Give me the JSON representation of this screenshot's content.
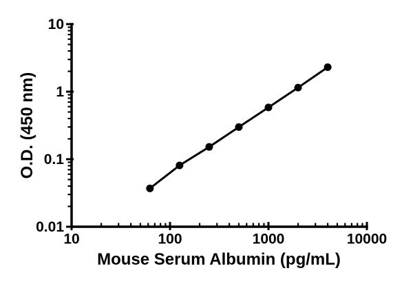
{
  "figure": {
    "background_color": "#ffffff",
    "axis_color": "#000000",
    "description": "ELISA standard curve, log-log scatter plot with connecting line"
  },
  "chart_data": {
    "type": "scatter",
    "xlabel": "Mouse Serum Albumin (pg/mL)",
    "ylabel": "O.D. (450 nm)",
    "xscale": "log",
    "yscale": "log",
    "xlim": [
      10,
      10000
    ],
    "ylim": [
      0.01,
      10
    ],
    "xticks": {
      "values": [
        10,
        100,
        1000,
        10000
      ],
      "labels": [
        "10",
        "100",
        "1000",
        "10000"
      ]
    },
    "yticks": {
      "values": [
        0.01,
        0.1,
        1,
        10
      ],
      "labels": [
        "0.01",
        "0.1",
        "1",
        "10"
      ]
    },
    "minor_ticks": true,
    "grid": false,
    "legend": false,
    "series": [
      {
        "name": "standard-curve",
        "color": "#000000",
        "marker": "filled-circle",
        "connected": true,
        "x": [
          62.5,
          125,
          250,
          500,
          1000,
          2000,
          4000
        ],
        "y": [
          0.037,
          0.081,
          0.152,
          0.299,
          0.584,
          1.148,
          2.305
        ]
      }
    ]
  }
}
